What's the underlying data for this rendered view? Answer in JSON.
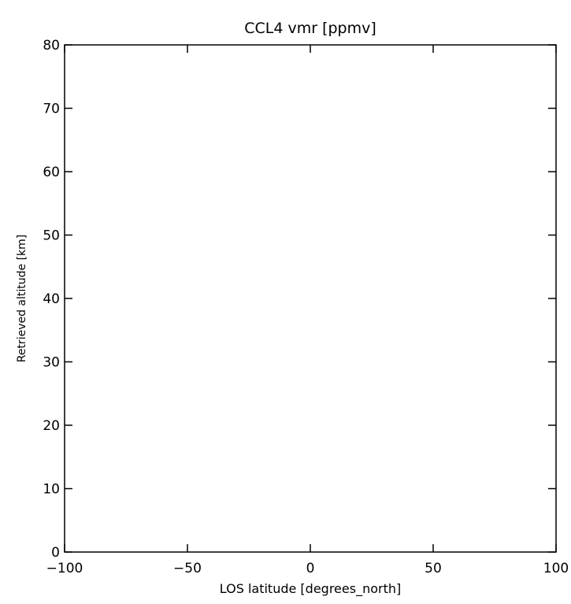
{
  "chart_data": {
    "type": "scatter",
    "title": "CCL4 vmr [ppmv]",
    "xlabel": "LOS latitude [degrees_north]",
    "ylabel": "Retrieved altitude [km]",
    "xlim": [
      -100,
      100
    ],
    "ylim": [
      0,
      80
    ],
    "x_ticks": [
      -100,
      -50,
      0,
      50,
      100
    ],
    "x_tick_labels": [
      "−100",
      "−50",
      "0",
      "50",
      "100"
    ],
    "y_ticks": [
      0,
      10,
      20,
      30,
      40,
      50,
      60,
      70,
      80
    ],
    "y_tick_labels": [
      "0",
      "10",
      "20",
      "30",
      "40",
      "50",
      "60",
      "70",
      "80"
    ],
    "grid": false,
    "series": []
  }
}
